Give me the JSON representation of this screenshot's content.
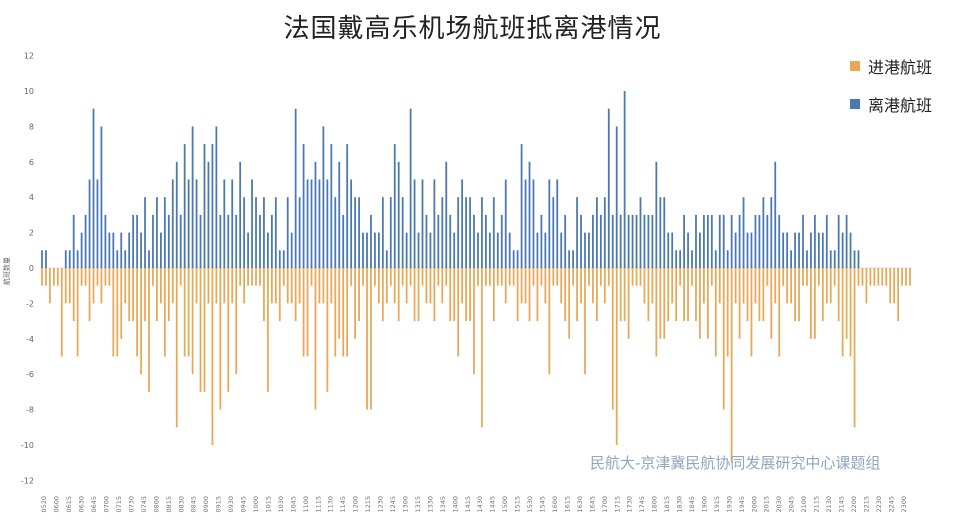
{
  "chart_data": {
    "type": "bar",
    "title": "法国戴高乐机场航班抵离港情况",
    "ylabel": "航班数量",
    "ylim": [
      -12,
      12
    ],
    "yticks": [
      -12,
      -10,
      -8,
      -6,
      -4,
      -2,
      0,
      2,
      4,
      6,
      8,
      10,
      12
    ],
    "series": [
      {
        "name": "进港航班",
        "color": "#e8a858",
        "values": [
          -1,
          -1,
          -2,
          -1,
          -1,
          -5,
          -2,
          -2,
          -3,
          -5,
          -1,
          -1,
          -3,
          -2,
          -1,
          -2,
          -1,
          -1,
          -5,
          -5,
          -4,
          -2,
          -3,
          -3,
          -5,
          -6,
          -3,
          -7,
          -1,
          -3,
          -2,
          -5,
          -3,
          -2,
          -9,
          -1,
          -5,
          -5,
          -6,
          -2,
          -7,
          -7,
          -2,
          -10,
          -2,
          -8,
          -2,
          -7,
          -2,
          -6,
          -1,
          -2,
          -1,
          -1,
          -1,
          -1,
          -3,
          -7,
          -2,
          -2,
          -3,
          -1,
          -2,
          -2,
          -3,
          -2,
          -5,
          -5,
          -1,
          -8,
          -2,
          -2,
          -7,
          -2,
          -5,
          -4,
          -5,
          -5,
          -1,
          -4,
          -3,
          -1,
          -8,
          -8,
          -1,
          -2,
          -3,
          -2,
          -1,
          -2,
          -3,
          -1,
          -2,
          -1,
          -3,
          -3,
          -1,
          -2,
          -2,
          -3,
          -1,
          -2,
          -1,
          -3,
          -3,
          -5,
          -2,
          -3,
          -3,
          -6,
          -1,
          -9,
          -1,
          -1,
          -3,
          -1,
          -1,
          -2,
          -1,
          -1,
          -3,
          -2,
          -2,
          -3,
          -1,
          -3,
          -1,
          -2,
          -6,
          -1,
          -1,
          -2,
          -3,
          -4,
          -1,
          -3,
          -2,
          -6,
          -1,
          -2,
          -3,
          -1,
          -2,
          -1,
          -8,
          -10,
          -3,
          -3,
          -4,
          -1,
          -1,
          -1,
          -2,
          -3,
          -2,
          -5,
          -4,
          -4,
          -3,
          -2,
          -3,
          -1,
          -3,
          -3,
          -1,
          -3,
          -4,
          -2,
          -4,
          -1,
          -5,
          -2,
          -8,
          -5,
          -11,
          -2,
          -4,
          -2,
          -3,
          -5,
          -2,
          -3,
          -3,
          -1,
          -4,
          -2,
          -5,
          -1,
          -2,
          -2,
          -3,
          -3,
          -1,
          -1,
          -4,
          -4,
          -1,
          -3,
          -2,
          -2,
          -1,
          -3,
          -5,
          -4,
          -5,
          -9,
          -1,
          -1,
          -2,
          -1,
          -1,
          -1,
          -1,
          -1,
          -2,
          -2,
          -3,
          -1,
          -1,
          -1
        ]
      },
      {
        "name": "离港航班",
        "color": "#4a78b3",
        "values": [
          1,
          1,
          0,
          0,
          0,
          0,
          1,
          1,
          3,
          1,
          2,
          3,
          5,
          9,
          5,
          8,
          3,
          2,
          2,
          1,
          2,
          1,
          2,
          3,
          3,
          2,
          4,
          1,
          3,
          4,
          2,
          4,
          3,
          5,
          6,
          3,
          7,
          5,
          8,
          5,
          3,
          7,
          6,
          7,
          8,
          3,
          5,
          3,
          5,
          3,
          6,
          4,
          2,
          5,
          4,
          3,
          4,
          2,
          3,
          4,
          1,
          1,
          4,
          2,
          9,
          4,
          7,
          5,
          5,
          6,
          5,
          8,
          5,
          7,
          4,
          6,
          3,
          7,
          5,
          4,
          4,
          2,
          2,
          3,
          2,
          2,
          4,
          1,
          4,
          7,
          6,
          4,
          2,
          9,
          5,
          2,
          5,
          3,
          2,
          5,
          3,
          4,
          6,
          3,
          2,
          4,
          5,
          4,
          4,
          3,
          2,
          4,
          3,
          2,
          4,
          2,
          3,
          5,
          2,
          1,
          1,
          7,
          5,
          6,
          5,
          2,
          3,
          2,
          5,
          4,
          5,
          2,
          3,
          1,
          1,
          4,
          3,
          2,
          2,
          3,
          4,
          3,
          4,
          9,
          3,
          8,
          3,
          10,
          3,
          3,
          3,
          4,
          3,
          3,
          3,
          6,
          4,
          4,
          2,
          2,
          1,
          1,
          3,
          2,
          1,
          3,
          2,
          3,
          3,
          3,
          1,
          3,
          3,
          1,
          3,
          2,
          3,
          4,
          2,
          2,
          3,
          3,
          4,
          3,
          4,
          6,
          3,
          2,
          2,
          1,
          2,
          2,
          3,
          1,
          2,
          3,
          2,
          2,
          3,
          1,
          1,
          3,
          2,
          3,
          2,
          1,
          1
        ]
      }
    ],
    "xtick_labels": [
      "0520",
      "0600",
      "0615",
      "0630",
      "0645",
      "0700",
      "0715",
      "0730",
      "0745",
      "0800",
      "0815",
      "0830",
      "0845",
      "0900",
      "0915",
      "0930",
      "0945",
      "1000",
      "1015",
      "1030",
      "1045",
      "1100",
      "1115",
      "1130",
      "1145",
      "1200",
      "1215",
      "1230",
      "1245",
      "1300",
      "1315",
      "1330",
      "1345",
      "1400",
      "1415",
      "1430",
      "1445",
      "1500",
      "1515",
      "1530",
      "1545",
      "1600",
      "1615",
      "1630",
      "1645",
      "1700",
      "1715",
      "1730",
      "1745",
      "1800",
      "1815",
      "1830",
      "1845",
      "1900",
      "1915",
      "1930",
      "1945",
      "2000",
      "2015",
      "2030",
      "2045",
      "2100",
      "2115",
      "2130",
      "2145",
      "2200",
      "2215",
      "2230",
      "2245",
      "2300"
    ],
    "legend": {
      "position": "top-right"
    },
    "grid": false
  },
  "watermark": "民航大-京津冀民航协同发展研究中心课题组"
}
